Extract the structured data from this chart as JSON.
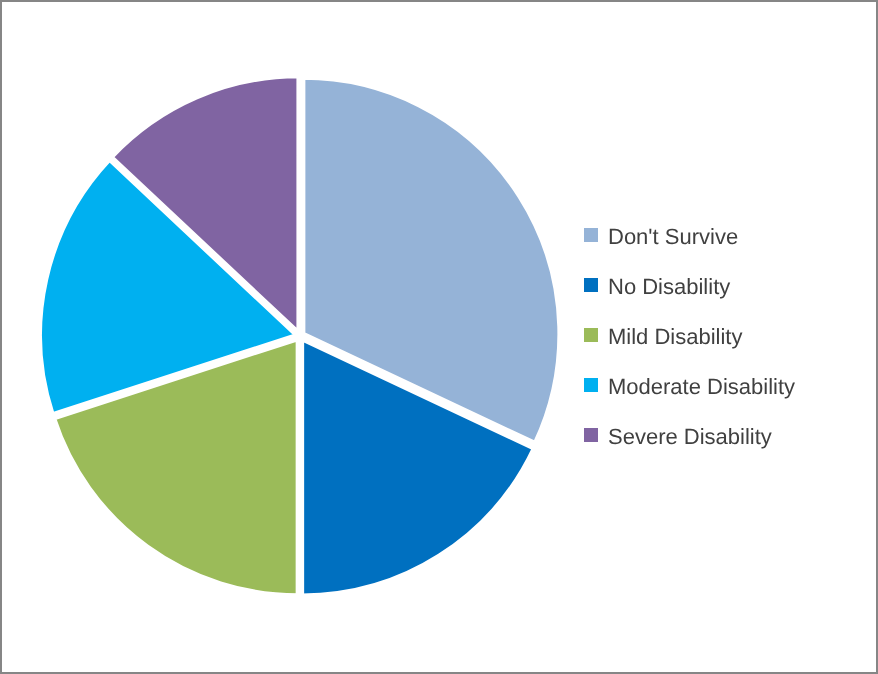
{
  "chart_data": {
    "type": "pie",
    "categories": [
      "Don't Survive",
      "No Disability",
      "Mild Disability",
      "Moderate Disability",
      "Severe Disability"
    ],
    "values": [
      32,
      18,
      20,
      17,
      13
    ],
    "colors": [
      "#95b3d7",
      "#0070c0",
      "#9bbb59",
      "#00b0f0",
      "#8064a2"
    ],
    "legend": "right"
  }
}
